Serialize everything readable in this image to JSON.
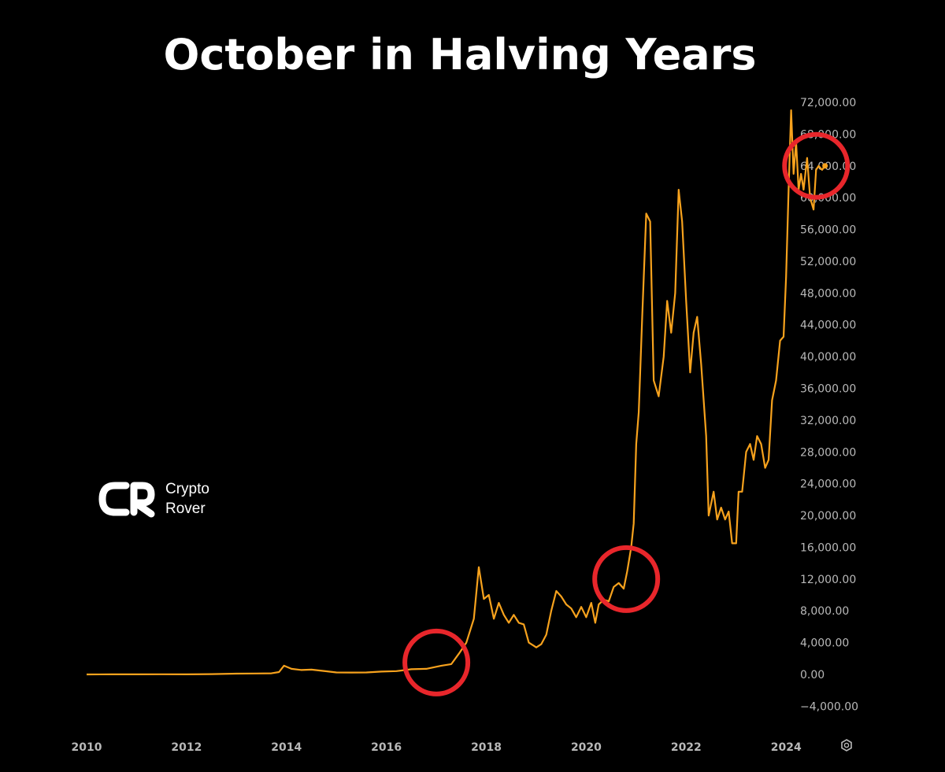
{
  "chart_data": {
    "type": "line",
    "title": "October in Halving Years",
    "series": [
      {
        "x": [
          2010.0,
          2010.5,
          2011.0,
          2011.5,
          2012.0,
          2012.5,
          2013.0,
          2013.4,
          2013.7,
          2013.85,
          2013.95,
          2014.1,
          2014.3,
          2014.5,
          2014.8,
          2015.0,
          2015.3,
          2015.6,
          2015.9,
          2016.2,
          2016.5,
          2016.8,
          2016.95,
          2017.1,
          2017.3,
          2017.45,
          2017.6,
          2017.75,
          2017.85,
          2017.95,
          2018.05,
          2018.15,
          2018.25,
          2018.35,
          2018.45,
          2018.55,
          2018.65,
          2018.75,
          2018.85,
          2018.95,
          2019.0,
          2019.1,
          2019.2,
          2019.3,
          2019.4,
          2019.5,
          2019.6,
          2019.7,
          2019.8,
          2019.9,
          2020.0,
          2020.1,
          2020.18,
          2020.25,
          2020.35,
          2020.45,
          2020.55,
          2020.65,
          2020.75,
          2020.82,
          2020.9,
          2020.95,
          2021.0,
          2021.05,
          2021.12,
          2021.2,
          2021.28,
          2021.35,
          2021.45,
          2021.55,
          2021.62,
          2021.7,
          2021.78,
          2021.85,
          2021.92,
          2022.0,
          2022.08,
          2022.15,
          2022.22,
          2022.3,
          2022.4,
          2022.45,
          2022.55,
          2022.62,
          2022.7,
          2022.78,
          2022.85,
          2022.92,
          2023.0,
          2023.05,
          2023.12,
          2023.2,
          2023.28,
          2023.35,
          2023.42,
          2023.5,
          2023.58,
          2023.65,
          2023.72,
          2023.8,
          2023.88,
          2023.95,
          2024.0,
          2024.05,
          2024.1,
          2024.15,
          2024.2,
          2024.25,
          2024.3,
          2024.35,
          2024.42,
          2024.48,
          2024.55,
          2024.6,
          2024.65,
          2024.72,
          2024.78
        ],
        "y": [
          0,
          5,
          10,
          15,
          13,
          40,
          100,
          120,
          140,
          300,
          1100,
          700,
          550,
          600,
          400,
          250,
          240,
          250,
          360,
          420,
          650,
          700,
          900,
          1100,
          1300,
          2600,
          4000,
          7000,
          13500,
          9500,
          10000,
          7000,
          9000,
          7500,
          6500,
          7500,
          6500,
          6300,
          4000,
          3600,
          3400,
          3800,
          5000,
          8000,
          10500,
          9800,
          8800,
          8300,
          7200,
          8500,
          7200,
          9000,
          6500,
          8800,
          9400,
          9200,
          11000,
          11500,
          10800,
          13000,
          16000,
          19000,
          29000,
          33000,
          45000,
          58000,
          57000,
          37000,
          35000,
          40000,
          47000,
          43000,
          48000,
          61000,
          57000,
          47000,
          38000,
          43000,
          45000,
          39000,
          30000,
          20000,
          23000,
          19500,
          21000,
          19500,
          20500,
          16500,
          16500,
          23000,
          23000,
          28000,
          29000,
          27000,
          30000,
          29000,
          26000,
          27000,
          34500,
          37000,
          42000,
          42500,
          50000,
          61000,
          71000,
          63000,
          67000,
          61000,
          63000,
          61000,
          65000,
          60000,
          58500,
          63500,
          64000,
          63500,
          64000
        ]
      }
    ],
    "y_ticks": [
      "72,000.00",
      "68,000.00",
      "64,000.00",
      "60,000.00",
      "56,000.00",
      "52,000.00",
      "48,000.00",
      "44,000.00",
      "40,000.00",
      "36,000.00",
      "32,000.00",
      "28,000.00",
      "24,000.00",
      "20,000.00",
      "16,000.00",
      "12,000.00",
      "8,000.00",
      "4,000.00",
      "0.00",
      "−4,000.00"
    ],
    "x_ticks": [
      "2010",
      "2012",
      "2014",
      "2016",
      "2018",
      "2020",
      "2022",
      "2024"
    ],
    "xlim": [
      2010,
      2025.1
    ],
    "ylim": [
      -4000,
      72000
    ],
    "highlight_points": [
      {
        "x": 2017.0,
        "y": 1500
      },
      {
        "x": 2020.8,
        "y": 12000
      },
      {
        "x": 2024.6,
        "y": 64000
      }
    ],
    "grid": false,
    "line_color": "#f7a21d",
    "highlight_color": "#e8262b",
    "background": "#000000"
  },
  "brand": {
    "logo_name": "crypto-rover-logo",
    "name_line1": "Crypto",
    "name_line2": "Rover"
  },
  "settings_icon": "settings-hexagon-icon"
}
